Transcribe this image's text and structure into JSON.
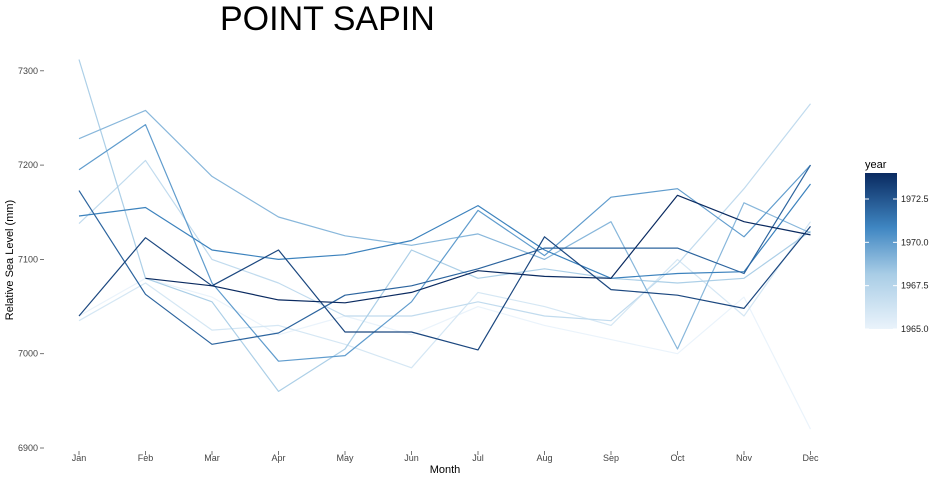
{
  "chart_data": {
    "type": "line",
    "title": "POINT SAPIN",
    "xlabel": "Month",
    "ylabel": "Relative Sea Level (mm)",
    "categories": [
      "Jan",
      "Feb",
      "Mar",
      "Apr",
      "May",
      "Jun",
      "Jul",
      "Aug",
      "Sep",
      "Oct",
      "Nov",
      "Dec"
    ],
    "ylim": [
      6900,
      7310
    ],
    "yticks": [
      6900,
      7000,
      7100,
      7200,
      7300
    ],
    "ytick_labels": [
      "6900",
      "7000",
      "7100",
      "7200",
      "7300"
    ],
    "grid": false,
    "legend": {
      "title": "year",
      "placement": "right",
      "min": 1965.0,
      "max": 1974.0,
      "ticks": [
        1965.0,
        1967.5,
        1970.0,
        1972.5
      ],
      "tick_labels": [
        "1965.0",
        "1967.5",
        "1970.0",
        "1972.5"
      ],
      "color_low": "#eaf3fb",
      "color_high": "#0a2a60"
    },
    "series": [
      {
        "year": 1965,
        "values": [
          7040,
          7080,
          7060,
          7020,
          7040,
          7020,
          7050,
          7030,
          7015,
          7000,
          7060,
          6920
        ]
      },
      {
        "year": 1966,
        "values": [
          7035,
          7075,
          7025,
          7030,
          7010,
          6985,
          7065,
          7050,
          7030,
          7100,
          7040,
          7140
        ]
      },
      {
        "year": 1967,
        "values": [
          7138,
          7205,
          7100,
          7075,
          7040,
          7040,
          7055,
          7040,
          7035,
          7095,
          7175,
          7265
        ]
      },
      {
        "year": 1968,
        "values": [
          7312,
          7080,
          7055,
          6960,
          7005,
          7110,
          7080,
          7090,
          7080,
          7075,
          7080,
          7130
        ]
      },
      {
        "year": 1969,
        "values": [
          7228,
          7258,
          7188,
          7145,
          7125,
          7115,
          7127,
          7100,
          7140,
          7005,
          7160,
          7128
        ]
      },
      {
        "year": 1970,
        "values": [
          7195,
          7243,
          7075,
          6992,
          6998,
          7055,
          7152,
          7104,
          7166,
          7175,
          7124,
          7200
        ]
      },
      {
        "year": 1971,
        "values": [
          7146,
          7155,
          7110,
          7100,
          7105,
          7120,
          7157,
          7110,
          7080,
          7085,
          7087,
          7180
        ]
      },
      {
        "year": 1972,
        "values": [
          7173,
          7063,
          7010,
          7022,
          7062,
          7072,
          7090,
          7112,
          7112,
          7112,
          7085,
          7200
        ]
      },
      {
        "year": 1973,
        "values": [
          7040,
          7123,
          7072,
          7110,
          7023,
          7023,
          7004,
          7124,
          7068,
          7062,
          7048,
          7135
        ]
      },
      {
        "year": 1974,
        "values": [
          null,
          7080,
          7072,
          7057,
          7054,
          7065,
          7088,
          7082,
          7080,
          7168,
          7140,
          7126
        ]
      }
    ]
  }
}
